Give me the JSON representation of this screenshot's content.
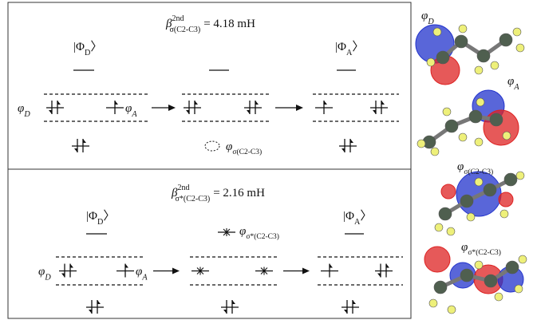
{
  "panels": [
    {
      "beta": {
        "symbol": "β",
        "sup": "2nd",
        "sub": "σ(C2-C3)",
        "value": "= 4.18 mH"
      },
      "states": [
        {
          "symbol": "|Φ",
          "sub": "D",
          "close": "〉"
        },
        {
          "symbol": "|Φ",
          "sub": "A",
          "close": "〉"
        }
      ],
      "donor": {
        "symbol": "φ",
        "sub": "D"
      },
      "acceptor": {
        "symbol": "φ",
        "sub": "A"
      },
      "bond": {
        "symbol": "φ",
        "sub": "σ(C2-C3)"
      }
    },
    {
      "beta": {
        "symbol": "β",
        "sup": "2nd",
        "sub": "σ*(C2-C3)",
        "value": "= 2.16 mH"
      },
      "states": [
        {
          "symbol": "|Φ",
          "sub": "D",
          "close": "〉"
        },
        {
          "symbol": "|Φ",
          "sub": "A",
          "close": "〉"
        }
      ],
      "donor": {
        "symbol": "φ",
        "sub": "D"
      },
      "acceptor": {
        "symbol": "φ",
        "sub": "A"
      },
      "bond": {
        "symbol": "φ",
        "sub": "σ*(C2-C3)"
      }
    }
  ],
  "molecules": [
    {
      "symbol": "φ",
      "sub": "D"
    },
    {
      "symbol": "φ",
      "sub": "A"
    },
    {
      "symbol": "φ",
      "sub": "σ(C2-C3)"
    },
    {
      "symbol": "φ",
      "sub": "σ*(C2-C3)"
    }
  ]
}
